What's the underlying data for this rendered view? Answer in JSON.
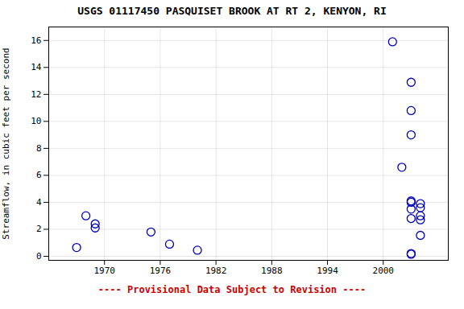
{
  "chart_data": {
    "type": "scatter",
    "title": "USGS 01117450 PASQUISET BROOK AT RT 2, KENYON, RI",
    "ylabel": "Streamflow, in cubic feet per second",
    "footnote": "---- Provisional Data Subject to Revision ----",
    "x": [
      1967,
      1968,
      1969,
      1969,
      1975,
      1977,
      1980,
      2001,
      2002,
      2003,
      2003,
      2003,
      2003,
      2003,
      2003,
      2003,
      2003,
      2003,
      2004,
      2004,
      2004,
      2004,
      2004
    ],
    "values": [
      0.65,
      3.0,
      2.1,
      2.4,
      1.8,
      0.9,
      0.45,
      15.9,
      6.6,
      12.9,
      0.2,
      10.8,
      9.0,
      4.1,
      4.0,
      3.5,
      2.8,
      0.15,
      3.9,
      3.6,
      2.7,
      1.55,
      3.0
    ],
    "color": "#0000BB",
    "marker": "circle",
    "xlim": [
      1964,
      2007
    ],
    "ylim": [
      -0.3,
      17
    ],
    "xticks": [
      1970,
      1976,
      1982,
      1988,
      1994,
      2000
    ],
    "yticks": [
      0,
      2,
      4,
      6,
      8,
      10,
      12,
      14,
      16
    ],
    "grid": true
  }
}
